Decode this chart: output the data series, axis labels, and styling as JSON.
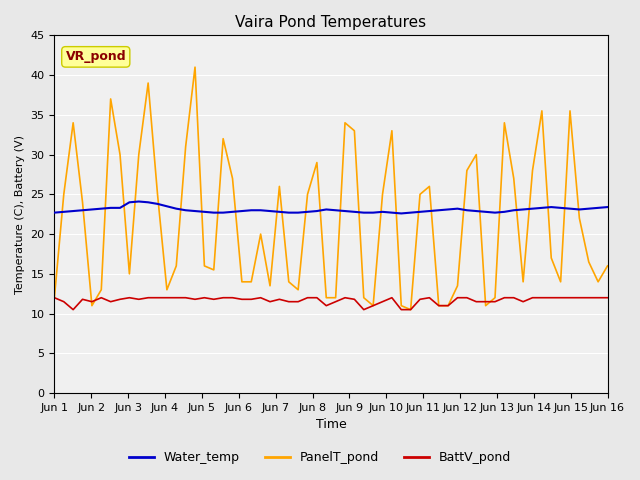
{
  "title": "Vaira Pond Temperatures",
  "xlabel": "Time",
  "ylabel": "Temperature (C), Battery (V)",
  "annotation_text": "VR_pond",
  "annotation_color": "#8B0000",
  "annotation_bg": "#FFFF99",
  "ylim": [
    0,
    45
  ],
  "yticks": [
    0,
    5,
    10,
    15,
    20,
    25,
    30,
    35,
    40,
    45
  ],
  "x_labels": [
    "Jun 1",
    "Jun 2",
    "Jun 3",
    "Jun 4",
    "Jun 5",
    "Jun 6",
    "Jun 7",
    "Jun 8",
    "Jun 9",
    "Jun 10",
    "Jun 11",
    "Jun 12",
    "Jun 13",
    "Jun 14",
    "Jun 15",
    "Jun 16"
  ],
  "water_temp_color": "#0000CC",
  "panel_temp_color": "#FFA500",
  "batt_color": "#CC0000",
  "legend_labels": [
    "Water_temp",
    "PanelT_pond",
    "BattV_pond"
  ],
  "bg_color": "#E8E8E8",
  "plot_bg_color": "#F0F0F0",
  "water_temp": [
    22.7,
    22.8,
    22.9,
    23.0,
    23.1,
    23.2,
    23.3,
    23.3,
    24.0,
    24.1,
    24.0,
    23.8,
    23.5,
    23.2,
    23.0,
    22.9,
    22.8,
    22.7,
    22.7,
    22.8,
    22.9,
    23.0,
    23.0,
    22.9,
    22.8,
    22.7,
    22.7,
    22.8,
    22.9,
    23.1,
    23.0,
    22.9,
    22.8,
    22.7,
    22.7,
    22.8,
    22.7,
    22.6,
    22.7,
    22.8,
    22.9,
    23.0,
    23.1,
    23.2,
    23.0,
    22.9,
    22.8,
    22.7,
    22.8,
    23.0,
    23.1,
    23.2,
    23.3,
    23.4,
    23.3,
    23.2,
    23.1,
    23.2,
    23.3,
    23.4
  ],
  "panel_temp": [
    12.0,
    25.0,
    34.0,
    24.0,
    11.0,
    13.0,
    37.0,
    30.0,
    15.0,
    30.0,
    39.0,
    25.0,
    13.0,
    16.0,
    31.0,
    41.0,
    16.0,
    15.5,
    32.0,
    27.0,
    14.0,
    14.0,
    20.0,
    13.5,
    26.0,
    14.0,
    13.0,
    25.0,
    29.0,
    12.0,
    12.0,
    34.0,
    33.0,
    12.0,
    11.0,
    25.0,
    33.0,
    11.0,
    10.5,
    25.0,
    26.0,
    11.0,
    11.0,
    13.5,
    28.0,
    30.0,
    11.0,
    12.0,
    34.0,
    27.0,
    14.0,
    28.0,
    35.5,
    17.0,
    14.0,
    35.5,
    22.0,
    16.5,
    14.0,
    16.0
  ],
  "batt_temp": [
    12.0,
    11.5,
    10.5,
    11.8,
    11.5,
    12.0,
    11.5,
    11.8,
    12.0,
    11.8,
    12.0,
    12.0,
    12.0,
    12.0,
    12.0,
    11.8,
    12.0,
    11.8,
    12.0,
    12.0,
    11.8,
    11.8,
    12.0,
    11.5,
    11.8,
    11.5,
    11.5,
    12.0,
    12.0,
    11.0,
    11.5,
    12.0,
    11.8,
    10.5,
    11.0,
    11.5,
    12.0,
    10.5,
    10.5,
    11.8,
    12.0,
    11.0,
    11.0,
    12.0,
    12.0,
    11.5,
    11.5,
    11.5,
    12.0,
    12.0,
    11.5,
    12.0,
    12.0,
    12.0,
    12.0,
    12.0,
    12.0,
    12.0,
    12.0,
    12.0
  ]
}
